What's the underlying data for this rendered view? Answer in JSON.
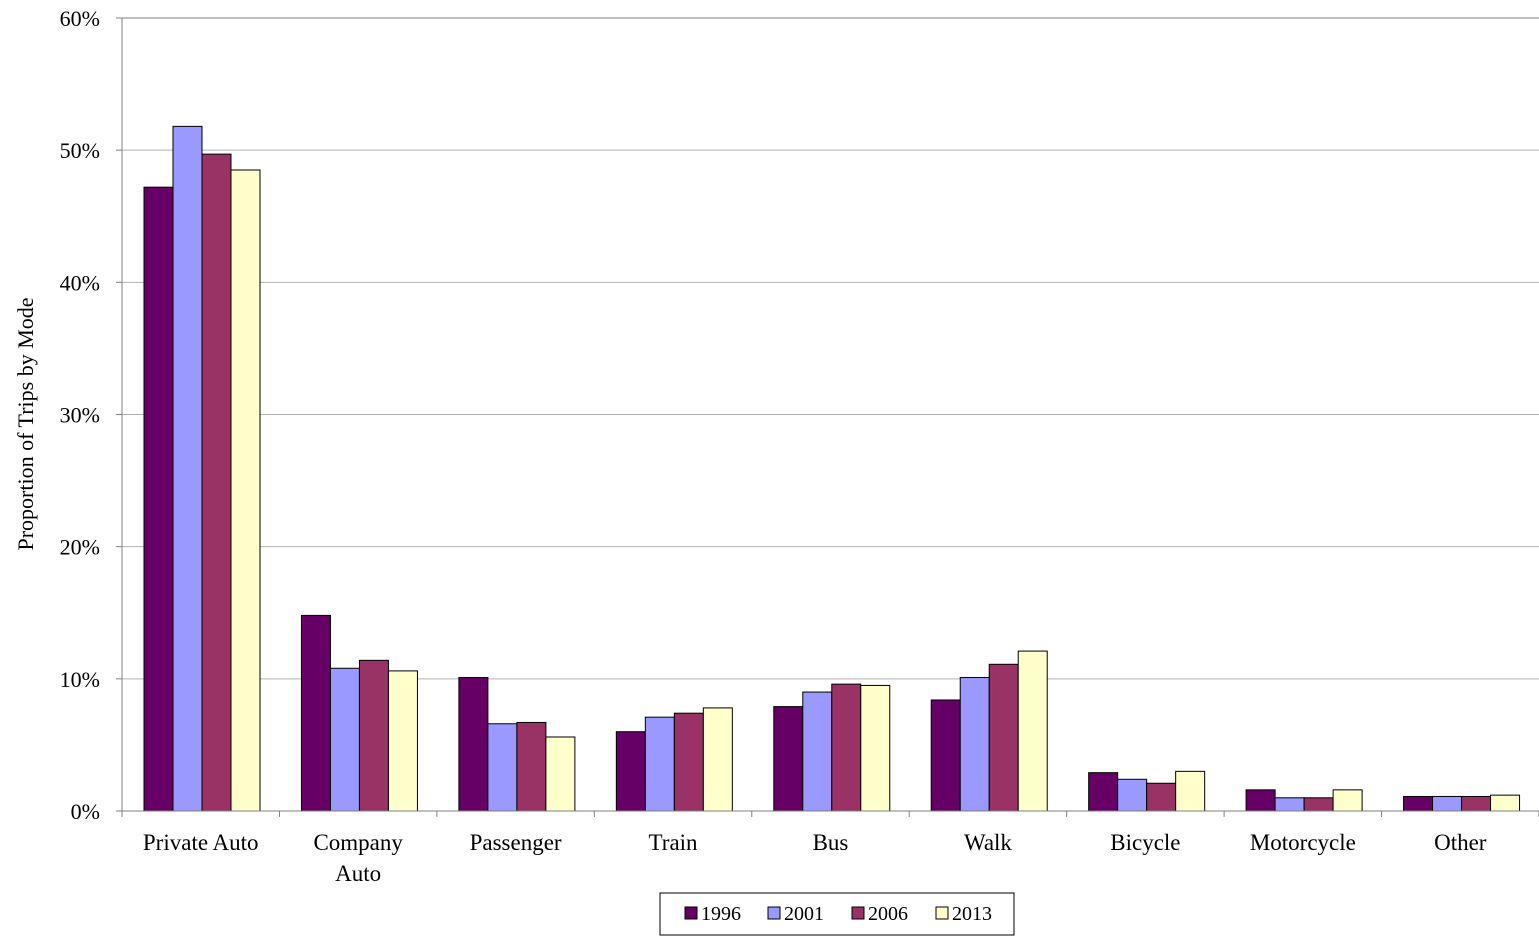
{
  "chart_data": {
    "type": "bar",
    "ylabel": "Proportion of Trips by Mode",
    "xlabel": "",
    "ylim": [
      0,
      60
    ],
    "y_unit": "%",
    "y_ticks": [
      "0%",
      "10%",
      "20%",
      "30%",
      "40%",
      "50%",
      "60%"
    ],
    "grid": true,
    "legend_position": "bottom",
    "categories": [
      [
        "Private Auto"
      ],
      [
        "Company",
        "Auto"
      ],
      [
        "Passenger"
      ],
      [
        "Train"
      ],
      [
        "Bus"
      ],
      [
        "Walk"
      ],
      [
        "Bicycle"
      ],
      [
        "Motorcycle"
      ],
      [
        "Other"
      ]
    ],
    "series": [
      {
        "name": "1996",
        "color": "#660066",
        "values": [
          47.2,
          14.8,
          10.1,
          6.0,
          7.9,
          8.4,
          2.9,
          1.6,
          1.1
        ]
      },
      {
        "name": "2001",
        "color": "#9999FF",
        "values": [
          51.8,
          10.8,
          6.6,
          7.1,
          9.0,
          10.1,
          2.4,
          1.0,
          1.1
        ]
      },
      {
        "name": "2006",
        "color": "#993366",
        "values": [
          49.7,
          11.4,
          6.7,
          7.4,
          9.6,
          11.1,
          2.1,
          1.0,
          1.1
        ]
      },
      {
        "name": "2013",
        "color": "#FFFFCC",
        "values": [
          48.5,
          10.6,
          5.6,
          7.8,
          9.5,
          12.1,
          3.0,
          1.6,
          1.2
        ]
      }
    ]
  }
}
